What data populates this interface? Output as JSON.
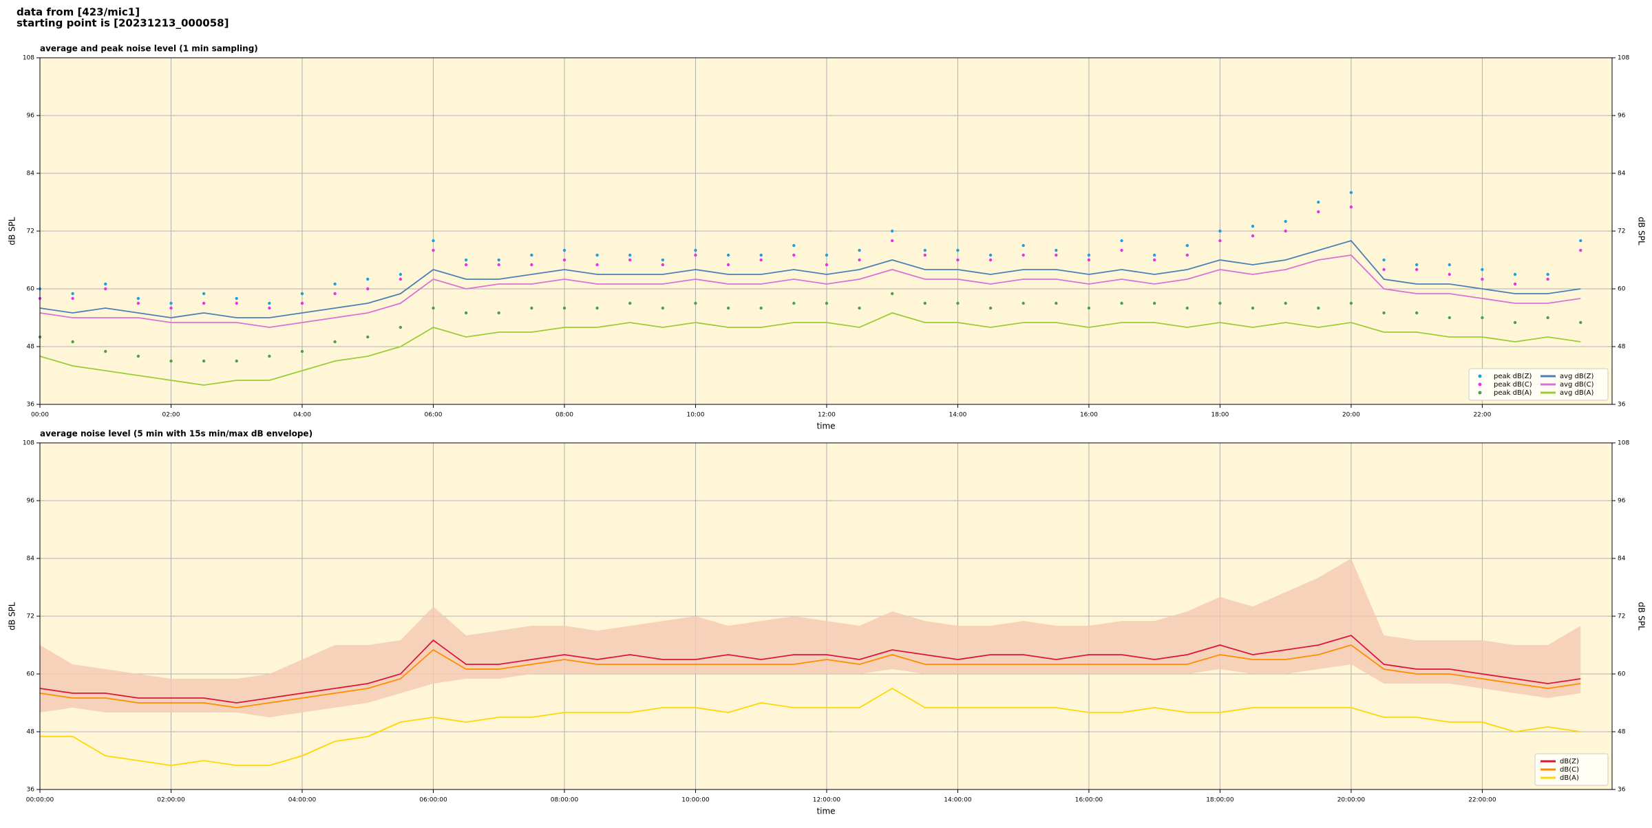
{
  "header": [
    "data from [423/mic1]",
    "starting point is [20231213_000058]"
  ],
  "chart_data": [
    {
      "type": "line",
      "title": "average and peak noise level (1 min sampling)",
      "xlabel": "time",
      "ylabel": "dB SPL",
      "x": [
        0,
        0.5,
        1,
        1.5,
        2,
        2.5,
        3,
        3.5,
        4,
        4.5,
        5,
        5.5,
        6,
        6.5,
        7,
        7.5,
        8,
        8.5,
        9,
        9.5,
        10,
        10.5,
        11,
        11.5,
        12,
        12.5,
        13,
        13.5,
        14,
        14.5,
        15,
        15.5,
        16,
        16.5,
        17,
        17.5,
        18,
        18.5,
        19,
        19.5,
        20,
        20.5,
        21,
        21.5,
        22,
        22.5,
        23,
        23.5
      ],
      "xlim": [
        0,
        23.98
      ],
      "xticks": [
        {
          "value": 0,
          "label": "00:00"
        },
        {
          "value": 2,
          "label": "02:00"
        },
        {
          "value": 4,
          "label": "04:00"
        },
        {
          "value": 6,
          "label": "06:00"
        },
        {
          "value": 8,
          "label": "08:00"
        },
        {
          "value": 10,
          "label": "10:00"
        },
        {
          "value": 12,
          "label": "12:00"
        },
        {
          "value": 14,
          "label": "14:00"
        },
        {
          "value": 16,
          "label": "16:00"
        },
        {
          "value": 18,
          "label": "18:00"
        },
        {
          "value": 20,
          "label": "20:00"
        },
        {
          "value": 22,
          "label": "22:00"
        }
      ],
      "ylim": [
        36,
        108
      ],
      "yticks": [
        36,
        48,
        60,
        72,
        84,
        96,
        108
      ],
      "grid": true,
      "legend": "lower right",
      "series": [
        {
          "name": "peak dB(Z)",
          "style": "scatter",
          "color": "#1e9fe0",
          "values": [
            60,
            59,
            61,
            58,
            57,
            59,
            58,
            57,
            59,
            61,
            62,
            63,
            70,
            66,
            66,
            67,
            68,
            67,
            67,
            66,
            68,
            67,
            67,
            69,
            67,
            68,
            72,
            68,
            68,
            67,
            69,
            68,
            67,
            70,
            67,
            69,
            72,
            73,
            74,
            78,
            80,
            66,
            65,
            65,
            64,
            63,
            63,
            70
          ]
        },
        {
          "name": "peak dB(C)",
          "style": "scatter",
          "color": "#e832e8",
          "values": [
            58,
            58,
            60,
            57,
            56,
            57,
            57,
            56,
            57,
            59,
            60,
            62,
            68,
            65,
            65,
            65,
            66,
            65,
            66,
            65,
            67,
            65,
            66,
            67,
            65,
            66,
            70,
            67,
            66,
            66,
            67,
            67,
            66,
            68,
            66,
            67,
            70,
            71,
            72,
            76,
            77,
            64,
            64,
            63,
            62,
            61,
            62,
            68
          ]
        },
        {
          "name": "peak dB(A)",
          "style": "scatter",
          "color": "#4f9e4f",
          "values": [
            50,
            49,
            47,
            46,
            45,
            45,
            45,
            46,
            47,
            49,
            50,
            52,
            56,
            55,
            55,
            56,
            56,
            56,
            57,
            56,
            57,
            56,
            56,
            57,
            57,
            56,
            59,
            57,
            57,
            56,
            57,
            57,
            56,
            57,
            57,
            56,
            57,
            56,
            57,
            56,
            57,
            55,
            55,
            54,
            54,
            53,
            54,
            53
          ]
        },
        {
          "name": "avg dB(Z)",
          "style": "line",
          "color": "#4a7fb5",
          "values": [
            56,
            55,
            56,
            55,
            54,
            55,
            54,
            54,
            55,
            56,
            57,
            59,
            64,
            62,
            62,
            63,
            64,
            63,
            63,
            63,
            64,
            63,
            63,
            64,
            63,
            64,
            66,
            64,
            64,
            63,
            64,
            64,
            63,
            64,
            63,
            64,
            66,
            65,
            66,
            68,
            70,
            62,
            61,
            61,
            60,
            59,
            59,
            60
          ]
        },
        {
          "name": "avg dB(C)",
          "style": "line",
          "color": "#da70d6",
          "values": [
            55,
            54,
            54,
            54,
            53,
            53,
            53,
            52,
            53,
            54,
            55,
            57,
            62,
            60,
            61,
            61,
            62,
            61,
            61,
            61,
            62,
            61,
            61,
            62,
            61,
            62,
            64,
            62,
            62,
            61,
            62,
            62,
            61,
            62,
            61,
            62,
            64,
            63,
            64,
            66,
            67,
            60,
            59,
            59,
            58,
            57,
            57,
            58
          ]
        },
        {
          "name": "avg dB(A)",
          "style": "line",
          "color": "#9acd32",
          "values": [
            46,
            44,
            43,
            42,
            41,
            40,
            41,
            41,
            43,
            45,
            46,
            48,
            52,
            50,
            51,
            51,
            52,
            52,
            53,
            52,
            53,
            52,
            52,
            53,
            53,
            52,
            55,
            53,
            53,
            52,
            53,
            53,
            52,
            53,
            53,
            52,
            53,
            52,
            53,
            52,
            53,
            51,
            51,
            50,
            50,
            49,
            50,
            49
          ]
        }
      ]
    },
    {
      "type": "line",
      "title": "average noise level (5 min with 15s min/max dB envelope)",
      "xlabel": "time",
      "ylabel": "dB SPL",
      "x": [
        0,
        0.5,
        1,
        1.5,
        2,
        2.5,
        3,
        3.5,
        4,
        4.5,
        5,
        5.5,
        6,
        6.5,
        7,
        7.5,
        8,
        8.5,
        9,
        9.5,
        10,
        10.5,
        11,
        11.5,
        12,
        12.5,
        13,
        13.5,
        14,
        14.5,
        15,
        15.5,
        16,
        16.5,
        17,
        17.5,
        18,
        18.5,
        19,
        19.5,
        20,
        20.5,
        21,
        21.5,
        22,
        22.5,
        23,
        23.5
      ],
      "xlim": [
        0,
        23.98
      ],
      "xticks": [
        {
          "value": 0,
          "label": "00:00:00"
        },
        {
          "value": 2,
          "label": "02:00:00"
        },
        {
          "value": 4,
          "label": "04:00:00"
        },
        {
          "value": 6,
          "label": "06:00:00"
        },
        {
          "value": 8,
          "label": "08:00:00"
        },
        {
          "value": 10,
          "label": "10:00:00"
        },
        {
          "value": 12,
          "label": "12:00:00"
        },
        {
          "value": 14,
          "label": "14:00:00"
        },
        {
          "value": 16,
          "label": "16:00:00"
        },
        {
          "value": 18,
          "label": "18:00:00"
        },
        {
          "value": 20,
          "label": "20:00:00"
        },
        {
          "value": 22,
          "label": "22:00:00"
        }
      ],
      "ylim": [
        36,
        108
      ],
      "yticks": [
        36,
        48,
        60,
        72,
        84,
        96,
        108
      ],
      "grid": true,
      "legend": "lower right",
      "envelope": {
        "color": "#f5c9b3",
        "max": [
          66,
          62,
          61,
          60,
          59,
          59,
          59,
          60,
          63,
          66,
          66,
          67,
          74,
          68,
          69,
          70,
          70,
          69,
          70,
          71,
          72,
          70,
          71,
          72,
          71,
          70,
          73,
          71,
          70,
          70,
          71,
          70,
          70,
          71,
          71,
          73,
          76,
          74,
          77,
          80,
          84,
          68,
          67,
          67,
          67,
          66,
          66,
          70
        ],
        "min": [
          52,
          53,
          52,
          52,
          52,
          52,
          52,
          51,
          52,
          53,
          54,
          56,
          58,
          59,
          59,
          60,
          60,
          60,
          60,
          60,
          60,
          60,
          60,
          60,
          60,
          60,
          61,
          60,
          60,
          60,
          60,
          60,
          60,
          60,
          60,
          60,
          61,
          60,
          60,
          61,
          62,
          58,
          58,
          58,
          57,
          56,
          55,
          56
        ]
      },
      "series": [
        {
          "name": "dB(Z)",
          "style": "line",
          "color": "#dc143c",
          "values": [
            57,
            56,
            56,
            55,
            55,
            55,
            54,
            55,
            56,
            57,
            58,
            60,
            67,
            62,
            62,
            63,
            64,
            63,
            64,
            63,
            63,
            64,
            63,
            64,
            64,
            63,
            65,
            64,
            63,
            64,
            64,
            63,
            64,
            64,
            63,
            64,
            66,
            64,
            65,
            66,
            68,
            62,
            61,
            61,
            60,
            59,
            58,
            59
          ]
        },
        {
          "name": "dB(C)",
          "style": "line",
          "color": "#ff8c00",
          "values": [
            56,
            55,
            55,
            54,
            54,
            54,
            53,
            54,
            55,
            56,
            57,
            59,
            65,
            61,
            61,
            62,
            63,
            62,
            62,
            62,
            62,
            62,
            62,
            62,
            63,
            62,
            64,
            62,
            62,
            62,
            62,
            62,
            62,
            62,
            62,
            62,
            64,
            63,
            63,
            64,
            66,
            61,
            60,
            60,
            59,
            58,
            57,
            58
          ]
        },
        {
          "name": "dB(A)",
          "style": "line",
          "color": "#ffd700",
          "values": [
            47,
            47,
            43,
            42,
            41,
            42,
            41,
            41,
            43,
            46,
            47,
            50,
            51,
            50,
            51,
            51,
            52,
            52,
            52,
            53,
            53,
            52,
            54,
            53,
            53,
            53,
            57,
            53,
            53,
            53,
            53,
            53,
            52,
            52,
            53,
            52,
            52,
            53,
            53,
            53,
            53,
            51,
            51,
            50,
            50,
            48,
            49,
            48
          ]
        }
      ]
    }
  ]
}
